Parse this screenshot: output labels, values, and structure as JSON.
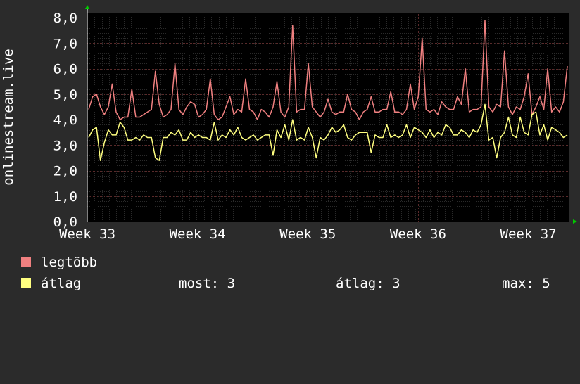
{
  "chart_data": {
    "type": "line",
    "ylabel": "onlinestream.live",
    "yticks": [
      "0,0",
      "1,0",
      "2,0",
      "3,0",
      "4,0",
      "5,0",
      "6,0",
      "7,0",
      "8,0"
    ],
    "ylim": [
      0,
      8.2
    ],
    "xticks": [
      "Week 33",
      "Week 34",
      "Week 35",
      "Week 36",
      "Week 37"
    ],
    "grid": true,
    "series": [
      {
        "name": "legtöbb",
        "color": "#f08080",
        "values": [
          4.4,
          4.9,
          5.0,
          4.5,
          4.2,
          4.5,
          5.4,
          4.3,
          4.0,
          4.1,
          4.1,
          5.2,
          4.1,
          4.1,
          4.2,
          4.3,
          4.4,
          5.9,
          4.6,
          4.1,
          4.2,
          4.4,
          6.2,
          4.4,
          4.2,
          4.5,
          4.7,
          4.6,
          4.1,
          4.2,
          4.4,
          5.6,
          4.2,
          4.0,
          4.1,
          4.5,
          4.9,
          4.2,
          4.4,
          4.3,
          5.6,
          4.4,
          4.3,
          4.0,
          4.4,
          4.3,
          4.1,
          4.5,
          5.5,
          4.3,
          4.1,
          4.5,
          7.7,
          4.3,
          4.4,
          4.4,
          6.2,
          4.5,
          4.3,
          4.1,
          4.3,
          4.8,
          4.3,
          4.2,
          4.3,
          4.3,
          5.0,
          4.4,
          4.3,
          4.0,
          4.3,
          4.4,
          4.9,
          4.3,
          4.3,
          4.4,
          4.4,
          5.1,
          4.3,
          4.3,
          4.2,
          4.4,
          5.4,
          4.4,
          4.9,
          7.2,
          4.4,
          4.3,
          4.4,
          4.2,
          4.7,
          4.5,
          4.4,
          4.4,
          4.9,
          4.6,
          6.0,
          4.3,
          4.4,
          4.4,
          4.5,
          7.9,
          4.5,
          4.3,
          4.6,
          4.5,
          6.7,
          4.5,
          4.2,
          4.5,
          4.4,
          4.9,
          5.8,
          4.2,
          4.5,
          4.9,
          4.4,
          6.0,
          4.3,
          4.5,
          4.3,
          4.7,
          6.1
        ]
      },
      {
        "name": "átlag",
        "color": "#ffff80",
        "values": [
          3.3,
          3.6,
          3.7,
          2.4,
          3.1,
          3.6,
          3.4,
          3.4,
          3.9,
          3.7,
          3.2,
          3.2,
          3.3,
          3.2,
          3.4,
          3.3,
          3.3,
          2.5,
          2.4,
          3.3,
          3.3,
          3.5,
          3.4,
          3.6,
          3.2,
          3.2,
          3.5,
          3.3,
          3.4,
          3.3,
          3.3,
          3.2,
          3.9,
          3.2,
          3.4,
          3.3,
          3.6,
          3.4,
          3.7,
          3.3,
          3.2,
          3.3,
          3.4,
          3.2,
          3.3,
          3.4,
          3.4,
          2.6,
          3.6,
          3.3,
          3.8,
          3.2,
          4.0,
          3.2,
          3.3,
          3.2,
          3.7,
          3.3,
          2.5,
          3.3,
          3.2,
          3.4,
          3.7,
          3.5,
          3.6,
          3.8,
          3.3,
          3.2,
          3.4,
          3.5,
          3.5,
          3.5,
          2.7,
          3.4,
          3.3,
          3.3,
          3.8,
          3.3,
          3.4,
          3.3,
          3.4,
          3.8,
          3.3,
          3.7,
          3.6,
          3.5,
          3.3,
          3.6,
          3.3,
          3.5,
          3.4,
          3.8,
          3.7,
          3.4,
          3.4,
          3.6,
          3.5,
          3.3,
          3.6,
          3.5,
          3.8,
          4.6,
          3.2,
          3.3,
          2.5,
          3.3,
          3.5,
          4.1,
          3.4,
          3.3,
          4.1,
          3.5,
          3.4,
          4.2,
          4.3,
          3.4,
          3.8,
          3.2,
          3.7,
          3.6,
          3.5,
          3.3,
          3.4
        ]
      }
    ],
    "stats": {
      "most_label": "most:",
      "most_value": "3",
      "atlag_label": "átlag:",
      "atlag_value": "3",
      "max_label": "max:",
      "max_value": "5"
    }
  }
}
